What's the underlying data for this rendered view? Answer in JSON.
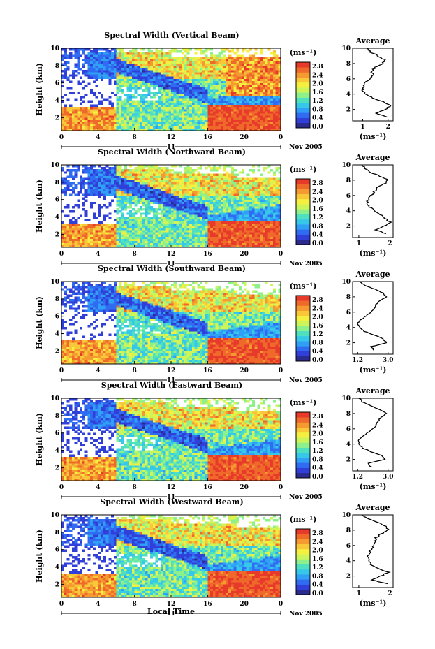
{
  "figure": {
    "xlabel": "Local Time",
    "date_label": "Nov 2005",
    "day_label": "11",
    "avg_title": "Average",
    "ylabel": "Height (km)",
    "unit_label": "(ms⁻¹)",
    "avg_unit": "(ms⁻¹)"
  },
  "colorbar": {
    "ticks": [
      "2.8",
      "2.4",
      "2.0",
      "1.6",
      "1.2",
      "0.8",
      "0.4",
      "0.0"
    ],
    "colors": [
      "#2b2b8f",
      "#2f3fd8",
      "#2f6cf2",
      "#2fa0f5",
      "#36c8e8",
      "#4fe0c0",
      "#8ef08a",
      "#cdf55a",
      "#f5f040",
      "#f8c838",
      "#f59a30",
      "#ef6a2a",
      "#e83a2a"
    ]
  },
  "chart_data": [
    {
      "type": "heatmap",
      "title": "Spectral Width (Vertical Beam)",
      "x_ticks": [
        "0",
        "4",
        "8",
        "12",
        "16",
        "20",
        "0"
      ],
      "y_ticks": [
        "2",
        "4",
        "6",
        "8",
        "10"
      ],
      "xlim": [
        0,
        24
      ],
      "ylim": [
        0.5,
        10
      ],
      "colorbar_range": [
        0.0,
        3.0
      ],
      "average_profile": {
        "x_ticks": [
          "1",
          "2"
        ],
        "xlim": [
          0.6,
          2.2
        ],
        "height": [
          1,
          1.5,
          2,
          2.5,
          3,
          3.5,
          4,
          4.5,
          5,
          5.5,
          6,
          6.5,
          7,
          7.5,
          8,
          8.5,
          9,
          9.5,
          10
        ],
        "value": [
          2.0,
          1.5,
          1.9,
          2.1,
          1.8,
          1.4,
          1.1,
          1.0,
          1.05,
          1.1,
          1.3,
          1.4,
          1.35,
          1.5,
          1.8,
          1.85,
          1.6,
          1.3,
          1.2
        ]
      }
    },
    {
      "type": "heatmap",
      "title": "Spectral Width (Northward Beam)",
      "x_ticks": [
        "0",
        "4",
        "8",
        "12",
        "16",
        "20",
        "0"
      ],
      "y_ticks": [
        "2",
        "4",
        "6",
        "8",
        "10"
      ],
      "xlim": [
        0,
        24
      ],
      "ylim": [
        0.5,
        10
      ],
      "colorbar_range": [
        0.0,
        3.0
      ],
      "average_profile": {
        "x_ticks": [
          "1",
          "2"
        ],
        "xlim": [
          0.8,
          2.1
        ],
        "height": [
          1,
          1.5,
          2,
          2.5,
          3,
          3.5,
          4,
          4.5,
          5,
          5.5,
          6,
          6.5,
          7,
          7.5,
          8,
          8.5,
          9,
          9.5,
          10
        ],
        "value": [
          1.9,
          1.5,
          1.8,
          2.0,
          1.85,
          1.7,
          1.5,
          1.35,
          1.25,
          1.3,
          1.4,
          1.5,
          1.6,
          1.8,
          1.95,
          1.7,
          1.4,
          1.2,
          1.1
        ]
      }
    },
    {
      "type": "heatmap",
      "title": "Spectral Width (Southward Beam)",
      "x_ticks": [
        "0",
        "4",
        "8",
        "12",
        "16",
        "20",
        "0"
      ],
      "y_ticks": [
        "2",
        "4",
        "6",
        "8",
        "10"
      ],
      "xlim": [
        0,
        24
      ],
      "ylim": [
        0.5,
        10
      ],
      "colorbar_range": [
        0.0,
        3.0
      ],
      "average_profile": {
        "x_ticks": [
          "1.2",
          "3.0"
        ],
        "xlim": [
          0.9,
          3.3
        ],
        "height": [
          1,
          1.5,
          2,
          2.5,
          3,
          3.5,
          4,
          4.5,
          5,
          5.5,
          6,
          6.5,
          7,
          7.5,
          8,
          8.5,
          9,
          9.5,
          10
        ],
        "value": [
          2.2,
          2.0,
          2.9,
          2.7,
          2.2,
          1.6,
          1.3,
          1.2,
          1.4,
          1.7,
          2.0,
          2.2,
          2.3,
          2.5,
          2.9,
          2.7,
          2.2,
          1.6,
          1.3
        ]
      }
    },
    {
      "type": "heatmap",
      "title": "Spectral Width (Eastward Beam)",
      "x_ticks": [
        "0",
        "4",
        "8",
        "12",
        "16",
        "20",
        "0"
      ],
      "y_ticks": [
        "2",
        "4",
        "6",
        "8",
        "10"
      ],
      "xlim": [
        0,
        24
      ],
      "ylim": [
        0.5,
        10
      ],
      "colorbar_range": [
        0.0,
        3.0
      ],
      "average_profile": {
        "x_ticks": [
          "1.2",
          "3.0"
        ],
        "xlim": [
          0.9,
          3.3
        ],
        "height": [
          1,
          1.5,
          2,
          2.5,
          3,
          3.5,
          4,
          4.5,
          5,
          5.5,
          6,
          6.5,
          7,
          7.5,
          8,
          8.5,
          9,
          9.5,
          10
        ],
        "value": [
          2.0,
          1.8,
          2.8,
          2.6,
          2.0,
          1.5,
          1.3,
          1.25,
          1.5,
          1.8,
          2.1,
          2.3,
          2.4,
          2.6,
          2.9,
          2.5,
          2.0,
          1.5,
          1.3
        ]
      }
    },
    {
      "type": "heatmap",
      "title": "Spectral Width (Westward Beam)",
      "x_ticks": [
        "0",
        "4",
        "8",
        "12",
        "16",
        "20",
        "0"
      ],
      "y_ticks": [
        "2",
        "4",
        "6",
        "8",
        "10"
      ],
      "xlim": [
        0,
        24
      ],
      "ylim": [
        0.5,
        10
      ],
      "colorbar_range": [
        0.0,
        3.0
      ],
      "average_profile": {
        "x_ticks": [
          "1",
          "2"
        ],
        "xlim": [
          0.8,
          2.1
        ],
        "height": [
          1,
          1.5,
          2,
          2.5,
          3,
          3.5,
          4,
          4.5,
          5,
          5.5,
          6,
          6.5,
          7,
          7.5,
          8,
          8.5,
          9,
          9.5,
          10
        ],
        "value": [
          1.9,
          1.4,
          1.7,
          1.95,
          1.6,
          1.4,
          1.3,
          1.3,
          1.35,
          1.4,
          1.45,
          1.5,
          1.55,
          1.7,
          1.95,
          1.9,
          1.6,
          1.3,
          1.1
        ]
      }
    }
  ]
}
